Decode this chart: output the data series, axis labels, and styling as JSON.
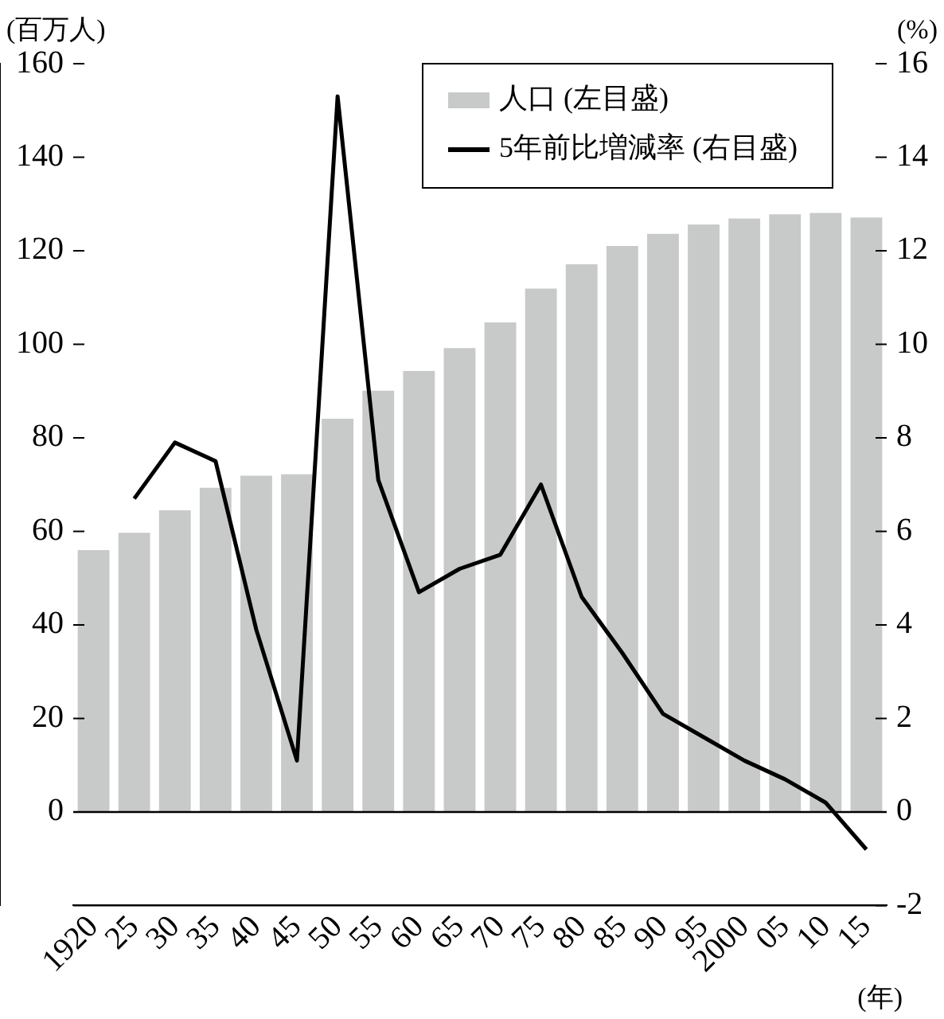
{
  "chart_data": {
    "type": "bar",
    "xlabel": "(年)",
    "ylabel": "(百万人)",
    "y2label": "(%)",
    "categories": [
      "1920",
      "25",
      "30",
      "35",
      "40",
      "45",
      "50",
      "55",
      "60",
      "65",
      "70",
      "75",
      "80",
      "85",
      "90",
      "95",
      "2000",
      "05",
      "10",
      "15"
    ],
    "series": [
      {
        "name": "人口 (左目盛)",
        "color": "#c8c9c9",
        "values": [
          56.0,
          59.7,
          64.5,
          69.3,
          71.9,
          72.2,
          84.1,
          90.1,
          94.3,
          99.2,
          104.7,
          111.9,
          117.1,
          121.0,
          123.6,
          125.6,
          126.9,
          127.8,
          128.1,
          127.1
        ]
      },
      {
        "name": "5年前比増減率 (右目盛)",
        "type": "line",
        "axis": "y2",
        "color": "#000000",
        "values": [
          null,
          6.7,
          7.9,
          7.5,
          3.9,
          1.1,
          15.3,
          7.1,
          4.7,
          5.2,
          5.5,
          7.0,
          4.6,
          3.4,
          2.1,
          1.6,
          1.1,
          0.7,
          0.2,
          -0.8
        ]
      }
    ],
    "ylim": [
      -20,
      160
    ],
    "yticks": [
      0,
      20,
      40,
      60,
      80,
      100,
      120,
      140,
      160
    ],
    "y2lim": [
      -2,
      16
    ],
    "y2ticks": [
      -2,
      0,
      2,
      4,
      6,
      8,
      10,
      12,
      14,
      16
    ],
    "ref_lines": [
      {
        "axis": "y",
        "value": 0,
        "color": "#000000"
      }
    ],
    "grid": false,
    "legend": "top right",
    "marker": "none",
    "line_style": "solid"
  }
}
